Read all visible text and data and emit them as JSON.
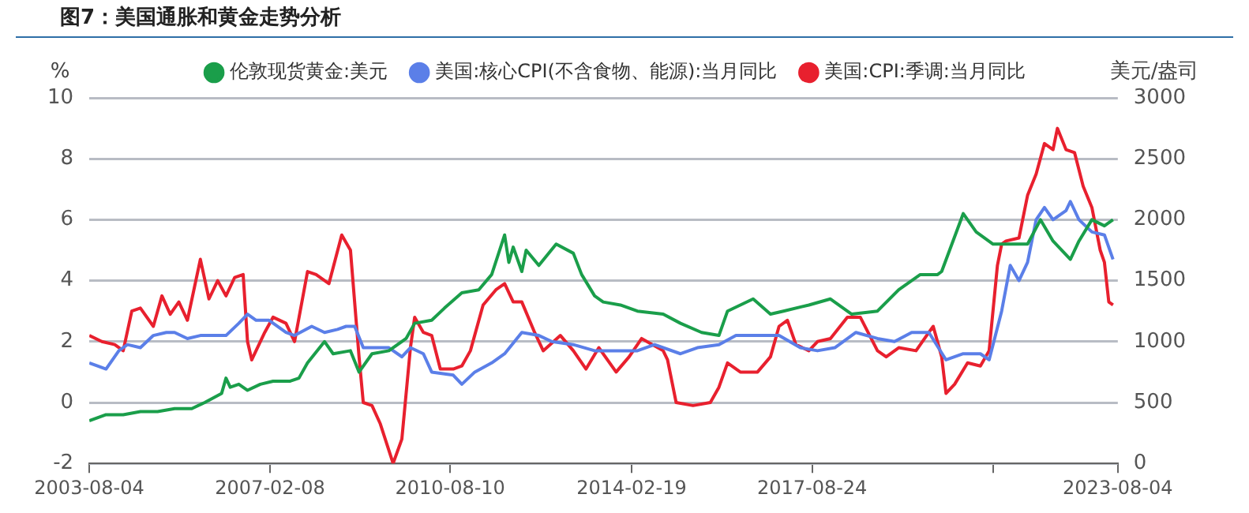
{
  "chart_data": {
    "type": "line",
    "title": "图7：美国通胀和黄金走势分析",
    "ylabel": "%",
    "y2label": "美元/盎司",
    "xlim": [
      "2003-08-04",
      "2023-08-04"
    ],
    "xticks": [
      "2003-08-04",
      "2007-02-08",
      "2010-08-10",
      "2014-02-19",
      "2017-08-24",
      {
        "value": "2021-03-01",
        "label": null
      },
      "2023-08-04"
    ],
    "ylim": [
      -2,
      10
    ],
    "yticks": [
      -2,
      0,
      2,
      4,
      6,
      8,
      10
    ],
    "y2lim": [
      0,
      3000
    ],
    "y2ticks": [
      0,
      500,
      1000,
      1500,
      2000,
      2500,
      3000
    ],
    "grid": "y",
    "legend": "top",
    "marker": "none",
    "line_style": "solid",
    "series": [
      {
        "name": "伦敦现货黄金:美元",
        "color": "#1a9e4a",
        "axis": "y2",
        "x": [
          "2003-08-04",
          "2003-12",
          "2004-04",
          "2004-08",
          "2004-12",
          "2005-04",
          "2005-08",
          "2005-11",
          "2006-03",
          "2006-04",
          "2006-05",
          "2006-07",
          "2006-09",
          "2006-12",
          "2007-03",
          "2007-07",
          "2007-09",
          "2007-11",
          "2008-03",
          "2008-05",
          "2008-09",
          "2008-11",
          "2009-02",
          "2009-06",
          "2009-10",
          "2009-12",
          "2010-04",
          "2010-07",
          "2010-11",
          "2011-03",
          "2011-06",
          "2011-09",
          "2011-10",
          "2011-11",
          "2012-01",
          "2012-02",
          "2012-05",
          "2012-09",
          "2013-01",
          "2013-03",
          "2013-06",
          "2013-08",
          "2013-12",
          "2014-04",
          "2014-10",
          "2015-02",
          "2015-07",
          "2015-11",
          "2016-01",
          "2016-07",
          "2016-11",
          "2017-02",
          "2017-08",
          "2018-01",
          "2018-06",
          "2018-12",
          "2019-05",
          "2019-10",
          "2020-02",
          "2020-03",
          "2020-08",
          "2020-11",
          "2021-03",
          "2021-07",
          "2021-11",
          "2022-02",
          "2022-05",
          "2022-09",
          "2022-11",
          "2023-02",
          "2023-05",
          "2023-07"
        ],
        "values": [
          350,
          400,
          400,
          425,
          425,
          450,
          450,
          500,
          575,
          700,
          625,
          650,
          600,
          650,
          675,
          675,
          700,
          825,
          1000,
          900,
          925,
          750,
          900,
          925,
          1025,
          1150,
          1175,
          1275,
          1400,
          1425,
          1550,
          1875,
          1650,
          1775,
          1575,
          1750,
          1625,
          1800,
          1725,
          1550,
          1375,
          1325,
          1300,
          1250,
          1225,
          1150,
          1075,
          1050,
          1250,
          1350,
          1225,
          1250,
          1300,
          1350,
          1225,
          1250,
          1425,
          1550,
          1550,
          1575,
          2050,
          1900,
          1800,
          1800,
          1800,
          2000,
          1825,
          1675,
          1825,
          2000,
          1950,
          2000
        ]
      },
      {
        "name": "美国:核心CPI(不含食物、能源):当月同比",
        "color": "#5b7fe8",
        "x": [
          "2003-08-04",
          "2003-10",
          "2003-12",
          "2004-03",
          "2004-05",
          "2004-08",
          "2004-11",
          "2005-02",
          "2005-04",
          "2005-07",
          "2005-10",
          "2006-02",
          "2006-04",
          "2006-07",
          "2006-09",
          "2006-11",
          "2007-02",
          "2007-06",
          "2007-08",
          "2007-12",
          "2008-03",
          "2008-06",
          "2008-08",
          "2008-10",
          "2008-12",
          "2009-03",
          "2009-06",
          "2009-09",
          "2009-11",
          "2010-02",
          "2010-04",
          "2010-09",
          "2010-11",
          "2011-02",
          "2011-06",
          "2011-09",
          "2012-01",
          "2012-05",
          "2012-08",
          "2013-01",
          "2013-06",
          "2013-11",
          "2014-04",
          "2014-08",
          "2015-02",
          "2015-06",
          "2015-11",
          "2016-03",
          "2016-08",
          "2017-01",
          "2017-06",
          "2017-10",
          "2018-02",
          "2018-07",
          "2018-12",
          "2019-04",
          "2019-08",
          "2019-12",
          "2020-04",
          "2020-08",
          "2020-12",
          "2021-02",
          "2021-05",
          "2021-07",
          "2021-09",
          "2021-11",
          "2022-01",
          "2022-03",
          "2022-05",
          "2022-08",
          "2022-09",
          "2022-11",
          "2023-02",
          "2023-05",
          "2023-07"
        ],
        "values": [
          1.3,
          1.2,
          1.1,
          1.7,
          1.9,
          1.8,
          2.2,
          2.3,
          2.3,
          2.1,
          2.2,
          2.2,
          2.2,
          2.6,
          2.9,
          2.7,
          2.7,
          2.3,
          2.2,
          2.5,
          2.3,
          2.4,
          2.5,
          2.5,
          1.8,
          1.8,
          1.8,
          1.5,
          1.8,
          1.6,
          1.0,
          0.9,
          0.6,
          1.0,
          1.3,
          1.6,
          2.3,
          2.2,
          2.0,
          1.9,
          1.7,
          1.7,
          1.7,
          1.9,
          1.6,
          1.8,
          1.9,
          2.2,
          2.2,
          2.2,
          1.8,
          1.7,
          1.8,
          2.3,
          2.1,
          2.0,
          2.3,
          2.3,
          1.4,
          1.6,
          1.6,
          1.4,
          3.0,
          4.5,
          4.0,
          4.6,
          6.0,
          6.4,
          6.0,
          6.3,
          6.6,
          6.0,
          5.6,
          5.5,
          4.7
        ]
      },
      {
        "name": "美国:CPI:季调:当月同比",
        "color": "#e8202e",
        "x": [
          "2003-08-04",
          "2003-11",
          "2004-02",
          "2004-04",
          "2004-06",
          "2004-08",
          "2004-11",
          "2005-01",
          "2005-03",
          "2005-05",
          "2005-07",
          "2005-10",
          "2005-12",
          "2006-02",
          "2006-04",
          "2006-06",
          "2006-08",
          "2006-09",
          "2006-10",
          "2007-01",
          "2007-03",
          "2007-06",
          "2007-08",
          "2007-11",
          "2008-01",
          "2008-04",
          "2008-07",
          "2008-09",
          "2008-11",
          "2008-12",
          "2009-02",
          "2009-04",
          "2009-07",
          "2009-09",
          "2009-11",
          "2009-12",
          "2010-02",
          "2010-04",
          "2010-06",
          "2010-09",
          "2010-11",
          "2011-01",
          "2011-04",
          "2011-07",
          "2011-09",
          "2011-11",
          "2012-01",
          "2012-04",
          "2012-06",
          "2012-10",
          "2013-01",
          "2013-04",
          "2013-07",
          "2013-11",
          "2014-02",
          "2014-05",
          "2014-10",
          "2014-11",
          "2015-01",
          "2015-05",
          "2015-09",
          "2015-11",
          "2016-01",
          "2016-04",
          "2016-08",
          "2016-11",
          "2017-01",
          "2017-03",
          "2017-05",
          "2017-08",
          "2017-10",
          "2018-01",
          "2018-05",
          "2018-08",
          "2018-12",
          "2019-02",
          "2019-05",
          "2019-09",
          "2019-12",
          "2020-01",
          "2020-03",
          "2020-04",
          "2020-06",
          "2020-09",
          "2020-12",
          "2021-02",
          "2021-04",
          "2021-05",
          "2021-06",
          "2021-09",
          "2021-11",
          "2022-01",
          "2022-03",
          "2022-05",
          "2022-06",
          "2022-08",
          "2022-10",
          "2022-12",
          "2023-02",
          "2023-04",
          "2023-05",
          "2023-06",
          "2023-07"
        ],
        "values": [
          2.2,
          2.0,
          1.9,
          1.7,
          3.0,
          3.1,
          2.5,
          3.5,
          2.9,
          3.3,
          2.7,
          4.7,
          3.4,
          4.0,
          3.5,
          4.1,
          4.2,
          2.0,
          1.4,
          2.3,
          2.8,
          2.6,
          2.0,
          4.3,
          4.2,
          3.9,
          5.5,
          5.0,
          1.5,
          0.0,
          -0.1,
          -0.7,
          -2.0,
          -1.2,
          1.8,
          2.8,
          2.3,
          2.2,
          1.1,
          1.1,
          1.2,
          1.7,
          3.2,
          3.7,
          3.9,
          3.3,
          3.3,
          2.3,
          1.7,
          2.2,
          1.7,
          1.1,
          1.8,
          1.0,
          1.5,
          2.1,
          1.7,
          1.4,
          0.0,
          -0.1,
          0.0,
          0.5,
          1.3,
          1.0,
          1.0,
          1.5,
          2.5,
          2.7,
          1.9,
          1.7,
          2.0,
          2.1,
          2.8,
          2.8,
          1.7,
          1.5,
          1.8,
          1.7,
          2.3,
          2.5,
          1.5,
          0.3,
          0.6,
          1.3,
          1.2,
          1.7,
          4.5,
          5.2,
          5.3,
          5.4,
          6.8,
          7.5,
          8.5,
          8.3,
          9.0,
          8.3,
          8.2,
          7.1,
          6.4,
          5.0,
          4.6,
          3.3,
          3.2
        ]
      }
    ]
  }
}
